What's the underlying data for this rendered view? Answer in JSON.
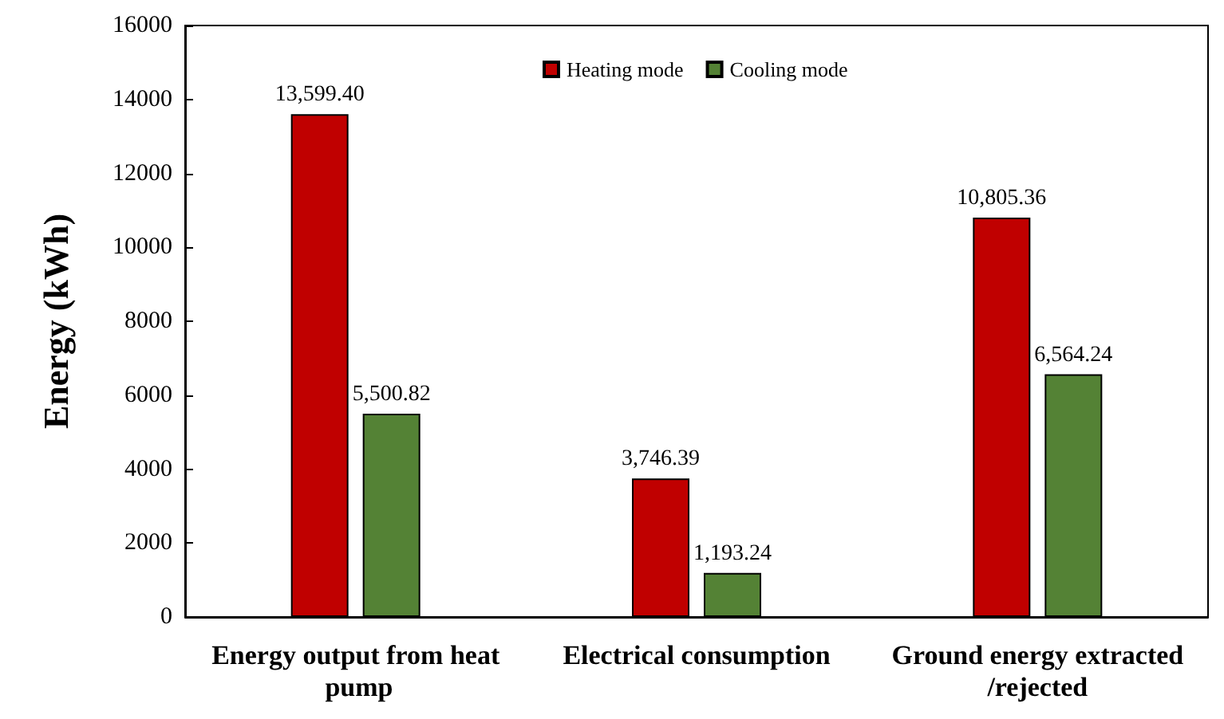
{
  "chart_data": {
    "type": "bar",
    "ylabel": "Energy (kWh)",
    "categories": [
      "Energy output from heat pump",
      "Electrical consumption",
      "Ground energy extracted/rejected"
    ],
    "series": [
      {
        "name": "Heating mode",
        "color": "#c00000",
        "values": [
          13599.4,
          3746.39,
          10805.36
        ],
        "value_labels": [
          "13,599.40",
          "3,746.39",
          "10,805.36"
        ]
      },
      {
        "name": "Cooling mode",
        "color": "#548235",
        "values": [
          5500.82,
          1193.24,
          6564.24
        ],
        "value_labels": [
          "5,500.82",
          "1,193.24",
          "6,564.24"
        ]
      }
    ],
    "ylim": [
      0,
      16000
    ],
    "yticks": [
      0,
      2000,
      4000,
      6000,
      8000,
      10000,
      12000,
      14000,
      16000
    ],
    "grid": false,
    "legend": "top"
  }
}
